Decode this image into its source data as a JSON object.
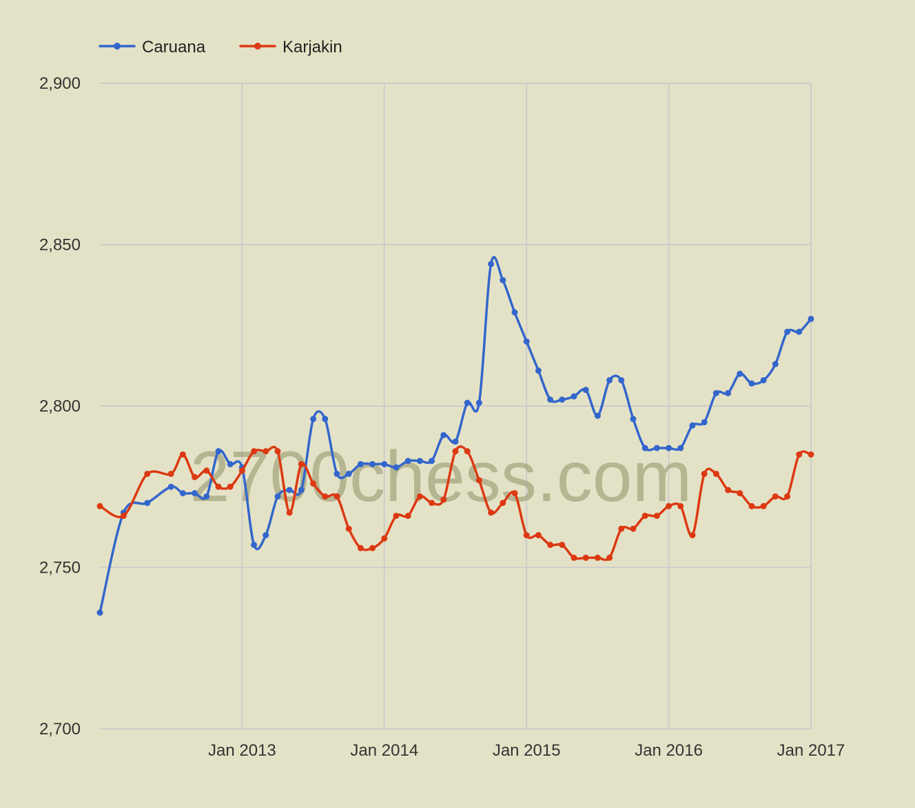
{
  "watermark": "2700chess.com",
  "chart_data": {
    "type": "line",
    "title": "",
    "xlabel": "",
    "ylabel": "",
    "legend_position": "top-left",
    "grid": true,
    "x_range": [
      "2012-01",
      "2017-01"
    ],
    "ylim": [
      2700,
      2900
    ],
    "y_ticks": [
      {
        "value": 2700,
        "label": "2,700"
      },
      {
        "value": 2750,
        "label": "2,750"
      },
      {
        "value": 2800,
        "label": "2,800"
      },
      {
        "value": 2850,
        "label": "2,850"
      },
      {
        "value": 2900,
        "label": "2,900"
      }
    ],
    "x_ticks": [
      {
        "value": "2013-01",
        "label": "Jan 2013"
      },
      {
        "value": "2014-01",
        "label": "Jan 2014"
      },
      {
        "value": "2015-01",
        "label": "Jan 2015"
      },
      {
        "value": "2016-01",
        "label": "Jan 2016"
      },
      {
        "value": "2017-01",
        "label": "Jan 2017"
      }
    ],
    "series": [
      {
        "name": "Caruana",
        "color": "#3366cc",
        "points": [
          [
            "2012-01",
            2736
          ],
          [
            "2012-03",
            2767
          ],
          [
            "2012-05",
            2770
          ],
          [
            "2012-07",
            2775
          ],
          [
            "2012-08",
            2773
          ],
          [
            "2012-09",
            2773
          ],
          [
            "2012-10",
            2772
          ],
          [
            "2012-11",
            2786
          ],
          [
            "2012-12",
            2782
          ],
          [
            "2013-01",
            2781
          ],
          [
            "2013-02",
            2757
          ],
          [
            "2013-03",
            2760
          ],
          [
            "2013-04",
            2772
          ],
          [
            "2013-05",
            2774
          ],
          [
            "2013-06",
            2774
          ],
          [
            "2013-07",
            2796
          ],
          [
            "2013-08",
            2796
          ],
          [
            "2013-09",
            2779
          ],
          [
            "2013-10",
            2779
          ],
          [
            "2013-11",
            2782
          ],
          [
            "2013-12",
            2782
          ],
          [
            "2014-01",
            2782
          ],
          [
            "2014-02",
            2781
          ],
          [
            "2014-03",
            2783
          ],
          [
            "2014-04",
            2783
          ],
          [
            "2014-05",
            2783
          ],
          [
            "2014-06",
            2791
          ],
          [
            "2014-07",
            2789
          ],
          [
            "2014-08",
            2801
          ],
          [
            "2014-09",
            2801
          ],
          [
            "2014-10",
            2844
          ],
          [
            "2014-11",
            2839
          ],
          [
            "2014-12",
            2829
          ],
          [
            "2015-01",
            2820
          ],
          [
            "2015-02",
            2811
          ],
          [
            "2015-03",
            2802
          ],
          [
            "2015-04",
            2802
          ],
          [
            "2015-05",
            2803
          ],
          [
            "2015-06",
            2805
          ],
          [
            "2015-07",
            2797
          ],
          [
            "2015-08",
            2808
          ],
          [
            "2015-09",
            2808
          ],
          [
            "2015-10",
            2796
          ],
          [
            "2015-11",
            2787
          ],
          [
            "2015-12",
            2787
          ],
          [
            "2016-01",
            2787
          ],
          [
            "2016-02",
            2787
          ],
          [
            "2016-03",
            2794
          ],
          [
            "2016-04",
            2795
          ],
          [
            "2016-05",
            2804
          ],
          [
            "2016-06",
            2804
          ],
          [
            "2016-07",
            2810
          ],
          [
            "2016-08",
            2807
          ],
          [
            "2016-09",
            2808
          ],
          [
            "2016-10",
            2813
          ],
          [
            "2016-11",
            2823
          ],
          [
            "2016-12",
            2823
          ],
          [
            "2017-01",
            2827
          ]
        ]
      },
      {
        "name": "Karjakin",
        "color": "#dc3912",
        "points": [
          [
            "2012-01",
            2769
          ],
          [
            "2012-03",
            2766
          ],
          [
            "2012-05",
            2779
          ],
          [
            "2012-07",
            2779
          ],
          [
            "2012-08",
            2785
          ],
          [
            "2012-09",
            2778
          ],
          [
            "2012-10",
            2780
          ],
          [
            "2012-11",
            2775
          ],
          [
            "2012-12",
            2775
          ],
          [
            "2013-01",
            2780
          ],
          [
            "2013-02",
            2786
          ],
          [
            "2013-03",
            2786
          ],
          [
            "2013-04",
            2786
          ],
          [
            "2013-05",
            2767
          ],
          [
            "2013-06",
            2782
          ],
          [
            "2013-07",
            2776
          ],
          [
            "2013-08",
            2772
          ],
          [
            "2013-09",
            2772
          ],
          [
            "2013-10",
            2762
          ],
          [
            "2013-11",
            2756
          ],
          [
            "2013-12",
            2756
          ],
          [
            "2014-01",
            2759
          ],
          [
            "2014-02",
            2766
          ],
          [
            "2014-03",
            2766
          ],
          [
            "2014-04",
            2772
          ],
          [
            "2014-05",
            2770
          ],
          [
            "2014-06",
            2771
          ],
          [
            "2014-07",
            2786
          ],
          [
            "2014-08",
            2786
          ],
          [
            "2014-09",
            2777
          ],
          [
            "2014-10",
            2767
          ],
          [
            "2014-11",
            2770
          ],
          [
            "2014-12",
            2773
          ],
          [
            "2015-01",
            2760
          ],
          [
            "2015-02",
            2760
          ],
          [
            "2015-03",
            2757
          ],
          [
            "2015-04",
            2757
          ],
          [
            "2015-05",
            2753
          ],
          [
            "2015-06",
            2753
          ],
          [
            "2015-07",
            2753
          ],
          [
            "2015-08",
            2753
          ],
          [
            "2015-09",
            2762
          ],
          [
            "2015-10",
            2762
          ],
          [
            "2015-11",
            2766
          ],
          [
            "2015-12",
            2766
          ],
          [
            "2016-01",
            2769
          ],
          [
            "2016-02",
            2769
          ],
          [
            "2016-03",
            2760
          ],
          [
            "2016-04",
            2779
          ],
          [
            "2016-05",
            2779
          ],
          [
            "2016-06",
            2774
          ],
          [
            "2016-07",
            2773
          ],
          [
            "2016-08",
            2769
          ],
          [
            "2016-09",
            2769
          ],
          [
            "2016-10",
            2772
          ],
          [
            "2016-11",
            2772
          ],
          [
            "2016-12",
            2785
          ],
          [
            "2017-01",
            2785
          ]
        ]
      }
    ]
  }
}
